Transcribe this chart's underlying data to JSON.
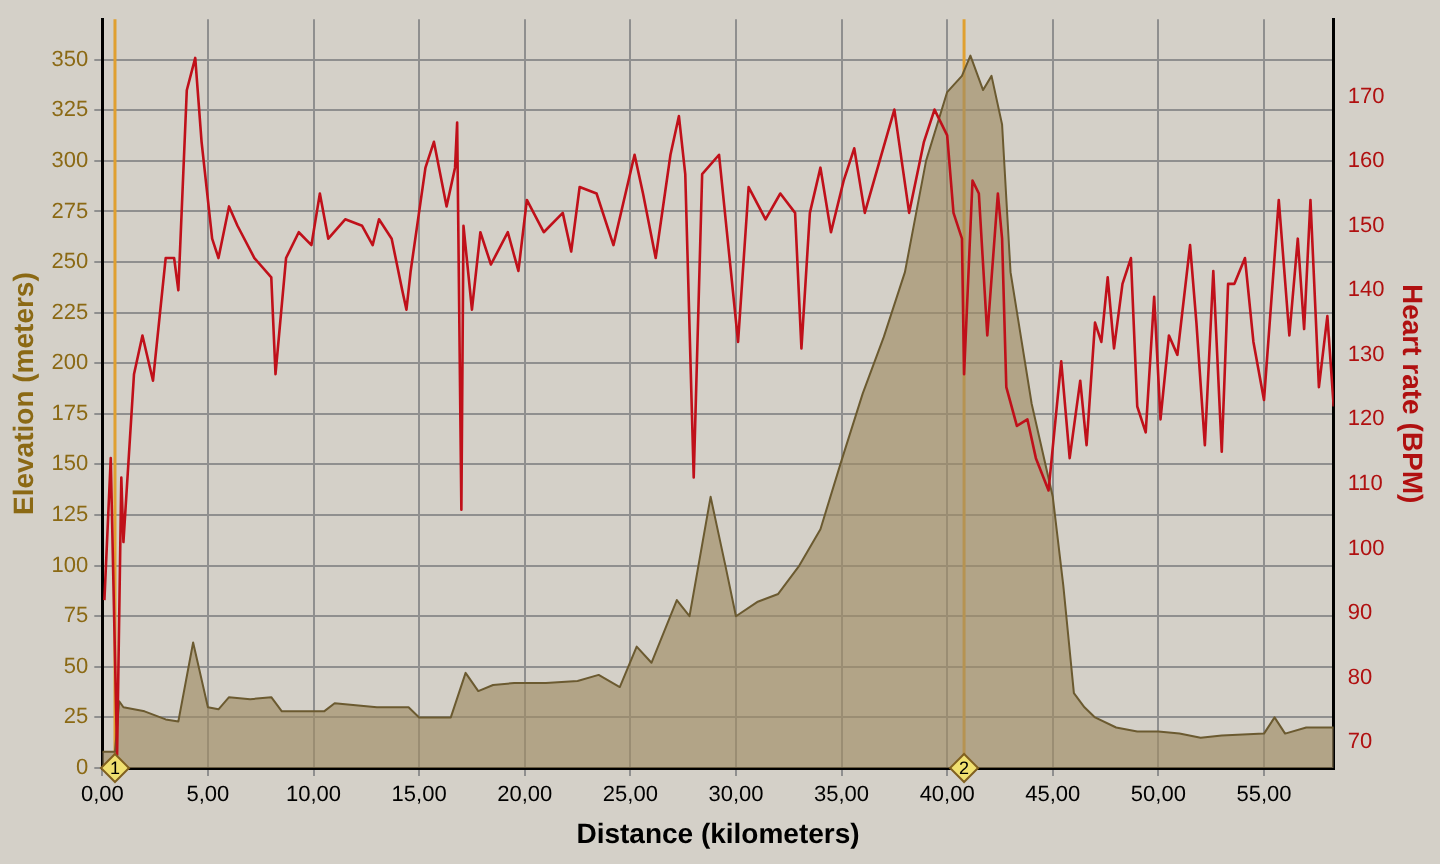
{
  "chart_data": {
    "type": "line",
    "xlabel": "Distance (kilometers)",
    "ylabel": "Elevation (meters)",
    "y2label": "Heart rate (BPM)",
    "xlim": [
      0,
      58.3
    ],
    "xticks": [
      {
        "value": 0,
        "label": "0,00"
      },
      {
        "value": 5,
        "label": "5,00"
      },
      {
        "value": 10,
        "label": "10,00"
      },
      {
        "value": 15,
        "label": "15,00"
      },
      {
        "value": 20,
        "label": "20,00"
      },
      {
        "value": 25,
        "label": "25,00"
      },
      {
        "value": 30,
        "label": "30,00"
      },
      {
        "value": 35,
        "label": "35,00"
      },
      {
        "value": 40,
        "label": "40,00"
      },
      {
        "value": 45,
        "label": "45,00"
      },
      {
        "value": 50,
        "label": "50,00"
      },
      {
        "value": 55,
        "label": "55,00"
      }
    ],
    "ylim": [
      0,
      370
    ],
    "yticks": [
      0,
      25,
      50,
      75,
      100,
      125,
      150,
      175,
      200,
      225,
      250,
      275,
      300,
      325,
      350
    ],
    "y2lim": [
      66,
      182
    ],
    "y2ticks": [
      70,
      80,
      90,
      100,
      110,
      120,
      130,
      140,
      150,
      160,
      170
    ],
    "grid": true,
    "legend": false,
    "marker": "none",
    "line_style": "solid",
    "series": [
      {
        "type": "area",
        "color": "#6b5a30",
        "x": [
          0,
          0.6,
          0.8,
          1,
          2,
          3,
          3.6,
          4.3,
          5,
          5.5,
          6,
          7,
          8,
          8.5,
          10.5,
          11,
          13,
          14.5,
          15,
          16.5,
          17.2,
          17.8,
          18.5,
          19.5,
          21,
          22.5,
          23.5,
          24.5,
          25.3,
          26,
          27.2,
          27.8,
          28.8,
          29.5,
          30,
          31,
          32,
          33,
          34,
          35,
          36,
          37,
          38,
          39,
          40,
          40.7,
          41.1,
          41.7,
          42.1,
          42.6,
          43,
          44,
          45,
          45.5,
          46,
          46.5,
          47,
          48,
          49,
          50,
          51,
          52,
          53,
          55,
          55.5,
          56,
          57,
          58.3
        ],
        "values": [
          8,
          8,
          33,
          30,
          28,
          24,
          23,
          62,
          30,
          29,
          35,
          34,
          35,
          28,
          28,
          32,
          30,
          30,
          25,
          25,
          47,
          38,
          41,
          42,
          42,
          43,
          46,
          40,
          60,
          52,
          83,
          75,
          134,
          100,
          75,
          82,
          86,
          100,
          118,
          152,
          185,
          213,
          245,
          300,
          334,
          342,
          352,
          335,
          342,
          318,
          245,
          180,
          134,
          90,
          37,
          30,
          25,
          20,
          18,
          18,
          17,
          15,
          16,
          17,
          25,
          17,
          20,
          20
        ]
      },
      {
        "type": "line",
        "axis": "y2",
        "color": "#c0101a",
        "x": [
          0.1,
          0.4,
          0.7,
          0.9,
          1,
          1.5,
          1.9,
          2.4,
          3,
          3.4,
          3.6,
          4,
          4.4,
          4.7,
          5.2,
          5.5,
          6,
          6.4,
          7.2,
          8,
          8.2,
          8.7,
          9.3,
          9.9,
          10.3,
          10.7,
          11.5,
          12.3,
          12.8,
          13.1,
          13.7,
          14.2,
          14.4,
          14.6,
          15.3,
          15.7,
          16.3,
          16.7,
          16.8,
          17,
          17.1,
          17.5,
          17.9,
          18.4,
          19.2,
          19.7,
          20.1,
          20.9,
          21.8,
          22.2,
          22.6,
          23.4,
          24.2,
          25.2,
          25.6,
          26.2,
          26.9,
          27.3,
          27.6,
          28,
          28.4,
          29.2,
          30.1,
          30.6,
          31.4,
          32.1,
          32.8,
          33.1,
          33.5,
          34,
          34.5,
          35.1,
          35.6,
          36.1,
          36.8,
          37.5,
          38.2,
          38.9,
          39.4,
          40,
          40.3,
          40.7,
          40.8,
          41.2,
          41.5,
          41.9,
          42.4,
          42.6,
          42.8,
          43.3,
          43.8,
          44.2,
          44.8,
          45.4,
          45.8,
          46.3,
          46.6,
          47,
          47.3,
          47.6,
          47.9,
          48.3,
          48.7,
          49,
          49.4,
          49.8,
          50.1,
          50.5,
          50.9,
          51.5,
          51.8,
          52.2,
          52.6,
          53,
          53.3,
          53.6,
          54.1,
          54.5,
          55,
          55.7,
          56.2,
          56.6,
          56.9,
          57.2,
          57.6,
          58,
          58.3
        ],
        "values": [
          92,
          114,
          68,
          111,
          101,
          127,
          133,
          126,
          145,
          145,
          140,
          171,
          176,
          163,
          148,
          145,
          153,
          150,
          145,
          142,
          127,
          145,
          149,
          147,
          155,
          148,
          151,
          150,
          147,
          151,
          148,
          140,
          137,
          143,
          159,
          163,
          153,
          159,
          166,
          106,
          150,
          137,
          149,
          144,
          149,
          143,
          154,
          149,
          152,
          146,
          156,
          155,
          147,
          161,
          155,
          145,
          161,
          167,
          158,
          111,
          158,
          161,
          132,
          156,
          151,
          155,
          152,
          131,
          152,
          159,
          149,
          157,
          162,
          152,
          160,
          168,
          152,
          163,
          168,
          164,
          152,
          148,
          127,
          157,
          155,
          133,
          155,
          148,
          125,
          119,
          120,
          114,
          109,
          129,
          114,
          126,
          116,
          135,
          132,
          142,
          131,
          141,
          145,
          122,
          118,
          139,
          120,
          133,
          130,
          147,
          135,
          116,
          143,
          115,
          141,
          141,
          145,
          132,
          123,
          154,
          133,
          148,
          134,
          154,
          125,
          136,
          122
        ]
      }
    ],
    "ref_lines": [
      {
        "axis": "x",
        "value": 0.6,
        "color": "#e0a030"
      },
      {
        "axis": "x",
        "value": 40.8,
        "color": "#e0a030"
      }
    ],
    "annotations": [
      {
        "text": "1",
        "x": 0.6,
        "y": 0
      },
      {
        "text": "2",
        "x": 40.8,
        "y": 0
      }
    ]
  }
}
